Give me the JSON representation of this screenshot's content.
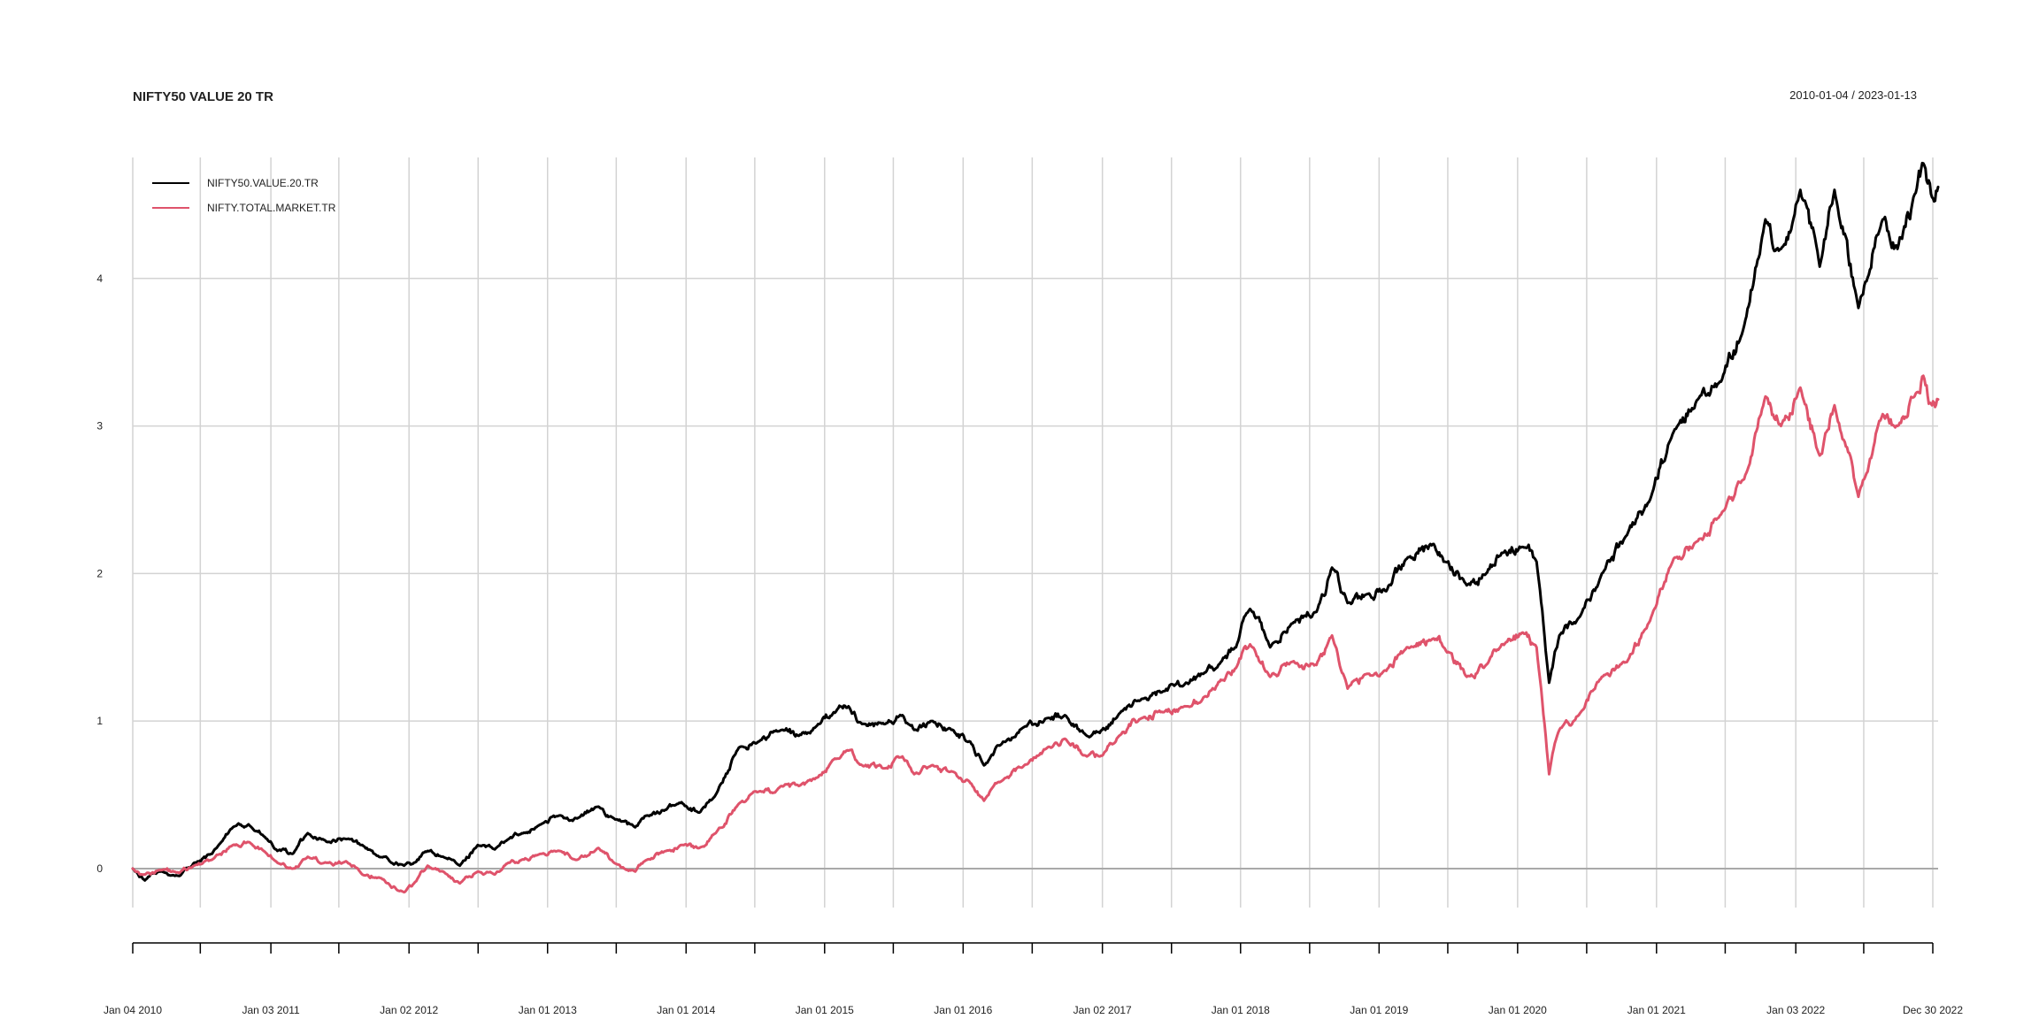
{
  "chart_data": {
    "type": "line",
    "title": "NIFTY50 VALUE 20 TR",
    "subtitle": "2010-01-04 / 2023-01-13",
    "xlabel": "",
    "ylabel": "",
    "xlim": [
      "2010-01-04",
      "2023-01-13"
    ],
    "ylim": [
      -0.18,
      4.82
    ],
    "grid": true,
    "legend_position": "top-left",
    "y_ticks": [
      0,
      1,
      2,
      3,
      4
    ],
    "x_ticks": [
      {
        "date": "2010-01-04",
        "label": "Jan 04 2010",
        "labeled": true
      },
      {
        "date": "2010-07-01",
        "label": "",
        "labeled": false
      },
      {
        "date": "2011-01-03",
        "label": "Jan 03 2011",
        "labeled": true
      },
      {
        "date": "2011-07-01",
        "label": "",
        "labeled": false
      },
      {
        "date": "2012-01-02",
        "label": "Jan 02 2012",
        "labeled": true
      },
      {
        "date": "2012-07-02",
        "label": "",
        "labeled": false
      },
      {
        "date": "2013-01-01",
        "label": "Jan 01 2013",
        "labeled": true
      },
      {
        "date": "2013-07-01",
        "label": "",
        "labeled": false
      },
      {
        "date": "2014-01-01",
        "label": "Jan 01 2014",
        "labeled": true
      },
      {
        "date": "2014-07-01",
        "label": "",
        "labeled": false
      },
      {
        "date": "2015-01-01",
        "label": "Jan 01 2015",
        "labeled": true
      },
      {
        "date": "2015-07-01",
        "label": "",
        "labeled": false
      },
      {
        "date": "2016-01-01",
        "label": "Jan 01 2016",
        "labeled": true
      },
      {
        "date": "2016-07-01",
        "label": "",
        "labeled": false
      },
      {
        "date": "2017-01-02",
        "label": "Jan 02 2017",
        "labeled": true
      },
      {
        "date": "2017-07-03",
        "label": "",
        "labeled": false
      },
      {
        "date": "2018-01-01",
        "label": "Jan 01 2018",
        "labeled": true
      },
      {
        "date": "2018-07-02",
        "label": "",
        "labeled": false
      },
      {
        "date": "2019-01-01",
        "label": "Jan 01 2019",
        "labeled": true
      },
      {
        "date": "2019-07-01",
        "label": "",
        "labeled": false
      },
      {
        "date": "2020-01-01",
        "label": "Jan 01 2020",
        "labeled": true
      },
      {
        "date": "2020-07-01",
        "label": "",
        "labeled": false
      },
      {
        "date": "2021-01-01",
        "label": "Jan 01 2021",
        "labeled": true
      },
      {
        "date": "2021-07-01",
        "label": "",
        "labeled": false
      },
      {
        "date": "2022-01-03",
        "label": "Jan 03 2022",
        "labeled": true
      },
      {
        "date": "2022-07-01",
        "label": "",
        "labeled": false
      },
      {
        "date": "2022-12-30",
        "label": "Dec 30 2022",
        "labeled": true
      }
    ],
    "series": [
      {
        "name": "NIFTY50.VALUE.20.TR",
        "color": "#000000",
        "points": [
          [
            "2010-01-04",
            0.0
          ],
          [
            "2010-02-05",
            -0.08
          ],
          [
            "2010-03-15",
            -0.02
          ],
          [
            "2010-05-07",
            -0.05
          ],
          [
            "2010-06-15",
            0.04
          ],
          [
            "2010-08-01",
            0.1
          ],
          [
            "2010-09-25",
            0.28
          ],
          [
            "2010-11-05",
            0.3
          ],
          [
            "2010-12-15",
            0.22
          ],
          [
            "2011-01-20",
            0.12
          ],
          [
            "2011-03-01",
            0.1
          ],
          [
            "2011-04-10",
            0.24
          ],
          [
            "2011-06-01",
            0.18
          ],
          [
            "2011-07-20",
            0.2
          ],
          [
            "2011-09-01",
            0.16
          ],
          [
            "2011-10-15",
            0.08
          ],
          [
            "2011-12-20",
            0.02
          ],
          [
            "2012-01-15",
            0.04
          ],
          [
            "2012-02-20",
            0.12
          ],
          [
            "2012-04-01",
            0.08
          ],
          [
            "2012-05-15",
            0.02
          ],
          [
            "2012-07-01",
            0.16
          ],
          [
            "2012-08-15",
            0.13
          ],
          [
            "2012-09-20",
            0.2
          ],
          [
            "2012-10-25",
            0.24
          ],
          [
            "2012-12-15",
            0.3
          ],
          [
            "2013-02-01",
            0.36
          ],
          [
            "2013-03-20",
            0.34
          ],
          [
            "2013-05-15",
            0.42
          ],
          [
            "2013-06-25",
            0.34
          ],
          [
            "2013-08-20",
            0.28
          ],
          [
            "2013-09-20",
            0.36
          ],
          [
            "2013-11-10",
            0.4
          ],
          [
            "2013-12-20",
            0.45
          ],
          [
            "2014-02-05",
            0.38
          ],
          [
            "2014-03-20",
            0.5
          ],
          [
            "2014-05-20",
            0.82
          ],
          [
            "2014-07-10",
            0.86
          ],
          [
            "2014-09-10",
            0.94
          ],
          [
            "2014-10-25",
            0.9
          ],
          [
            "2014-12-15",
            0.98
          ],
          [
            "2015-01-25",
            1.06
          ],
          [
            "2015-03-05",
            1.1
          ],
          [
            "2015-04-10",
            0.98
          ],
          [
            "2015-06-10",
            0.98
          ],
          [
            "2015-07-25",
            1.04
          ],
          [
            "2015-08-25",
            0.94
          ],
          [
            "2015-10-10",
            1.0
          ],
          [
            "2015-12-01",
            0.94
          ],
          [
            "2016-01-20",
            0.86
          ],
          [
            "2016-02-25",
            0.7
          ],
          [
            "2016-04-15",
            0.86
          ],
          [
            "2016-06-10",
            0.96
          ],
          [
            "2016-08-10",
            1.02
          ],
          [
            "2016-09-25",
            1.04
          ],
          [
            "2016-11-22",
            0.9
          ],
          [
            "2016-12-26",
            0.92
          ],
          [
            "2017-02-15",
            1.05
          ],
          [
            "2017-04-15",
            1.15
          ],
          [
            "2017-06-10",
            1.2
          ],
          [
            "2017-08-10",
            1.26
          ],
          [
            "2017-09-25",
            1.32
          ],
          [
            "2017-11-10",
            1.4
          ],
          [
            "2017-12-20",
            1.5
          ],
          [
            "2018-01-26",
            1.76
          ],
          [
            "2018-03-20",
            1.5
          ],
          [
            "2018-05-15",
            1.66
          ],
          [
            "2018-07-20",
            1.74
          ],
          [
            "2018-08-30",
            2.04
          ],
          [
            "2018-10-10",
            1.8
          ],
          [
            "2018-11-30",
            1.86
          ],
          [
            "2019-01-20",
            1.88
          ],
          [
            "2019-03-15",
            2.1
          ],
          [
            "2019-05-25",
            2.2
          ],
          [
            "2019-06-20",
            2.08
          ],
          [
            "2019-08-20",
            1.92
          ],
          [
            "2019-10-10",
            2.0
          ],
          [
            "2019-11-20",
            2.14
          ],
          [
            "2020-01-15",
            2.18
          ],
          [
            "2020-02-20",
            2.08
          ],
          [
            "2020-03-24",
            1.26
          ],
          [
            "2020-04-20",
            1.58
          ],
          [
            "2020-06-10",
            1.7
          ],
          [
            "2020-08-10",
            2.0
          ],
          [
            "2020-10-15",
            2.26
          ],
          [
            "2020-12-15",
            2.5
          ],
          [
            "2021-02-15",
            2.96
          ],
          [
            "2021-04-20",
            3.18
          ],
          [
            "2021-06-20",
            3.3
          ],
          [
            "2021-08-20",
            3.68
          ],
          [
            "2021-10-15",
            4.4
          ],
          [
            "2021-11-25",
            4.2
          ],
          [
            "2022-01-15",
            4.6
          ],
          [
            "2022-03-07",
            4.08
          ],
          [
            "2022-04-15",
            4.6
          ],
          [
            "2022-06-17",
            3.8
          ],
          [
            "2022-08-20",
            4.4
          ],
          [
            "2022-09-28",
            4.2
          ],
          [
            "2022-11-15",
            4.58
          ],
          [
            "2022-12-05",
            4.78
          ],
          [
            "2022-12-28",
            4.55
          ],
          [
            "2023-01-13",
            4.62
          ]
        ]
      },
      {
        "name": "NIFTY.TOTAL.MARKET.TR",
        "color": "#DF536B",
        "points": [
          [
            "2010-01-04",
            0.0
          ],
          [
            "2010-02-05",
            -0.04
          ],
          [
            "2010-03-15",
            -0.01
          ],
          [
            "2010-05-07",
            -0.03
          ],
          [
            "2010-06-15",
            0.02
          ],
          [
            "2010-08-01",
            0.06
          ],
          [
            "2010-09-25",
            0.16
          ],
          [
            "2010-11-05",
            0.18
          ],
          [
            "2010-12-15",
            0.12
          ],
          [
            "2011-01-20",
            0.04
          ],
          [
            "2011-03-01",
            0.0
          ],
          [
            "2011-04-10",
            0.08
          ],
          [
            "2011-06-01",
            0.04
          ],
          [
            "2011-07-20",
            0.05
          ],
          [
            "2011-09-01",
            -0.04
          ],
          [
            "2011-10-15",
            -0.06
          ],
          [
            "2011-12-20",
            -0.16
          ],
          [
            "2012-01-15",
            -0.1
          ],
          [
            "2012-02-20",
            0.02
          ],
          [
            "2012-04-01",
            -0.02
          ],
          [
            "2012-05-15",
            -0.1
          ],
          [
            "2012-07-01",
            -0.02
          ],
          [
            "2012-08-15",
            -0.04
          ],
          [
            "2012-09-20",
            0.04
          ],
          [
            "2012-10-25",
            0.06
          ],
          [
            "2012-12-15",
            0.1
          ],
          [
            "2013-02-01",
            0.12
          ],
          [
            "2013-03-20",
            0.06
          ],
          [
            "2013-05-15",
            0.14
          ],
          [
            "2013-06-25",
            0.04
          ],
          [
            "2013-08-20",
            -0.02
          ],
          [
            "2013-09-20",
            0.06
          ],
          [
            "2013-11-10",
            0.12
          ],
          [
            "2013-12-20",
            0.16
          ],
          [
            "2014-02-05",
            0.14
          ],
          [
            "2014-03-20",
            0.24
          ],
          [
            "2014-05-20",
            0.44
          ],
          [
            "2014-07-10",
            0.52
          ],
          [
            "2014-09-10",
            0.56
          ],
          [
            "2014-10-25",
            0.56
          ],
          [
            "2014-12-15",
            0.62
          ],
          [
            "2015-01-25",
            0.74
          ],
          [
            "2015-03-05",
            0.8
          ],
          [
            "2015-04-10",
            0.7
          ],
          [
            "2015-06-10",
            0.68
          ],
          [
            "2015-07-25",
            0.76
          ],
          [
            "2015-08-25",
            0.64
          ],
          [
            "2015-10-10",
            0.7
          ],
          [
            "2015-12-01",
            0.66
          ],
          [
            "2016-01-20",
            0.58
          ],
          [
            "2016-02-25",
            0.46
          ],
          [
            "2016-04-15",
            0.6
          ],
          [
            "2016-06-10",
            0.7
          ],
          [
            "2016-08-10",
            0.82
          ],
          [
            "2016-09-25",
            0.88
          ],
          [
            "2016-11-22",
            0.76
          ],
          [
            "2016-12-26",
            0.76
          ],
          [
            "2017-02-15",
            0.9
          ],
          [
            "2017-04-15",
            1.02
          ],
          [
            "2017-06-10",
            1.06
          ],
          [
            "2017-08-10",
            1.1
          ],
          [
            "2017-09-25",
            1.16
          ],
          [
            "2017-11-10",
            1.28
          ],
          [
            "2017-12-20",
            1.36
          ],
          [
            "2018-01-26",
            1.52
          ],
          [
            "2018-03-20",
            1.3
          ],
          [
            "2018-05-15",
            1.4
          ],
          [
            "2018-07-20",
            1.38
          ],
          [
            "2018-08-30",
            1.58
          ],
          [
            "2018-10-10",
            1.22
          ],
          [
            "2018-11-30",
            1.32
          ],
          [
            "2019-01-20",
            1.34
          ],
          [
            "2019-03-15",
            1.5
          ],
          [
            "2019-05-25",
            1.56
          ],
          [
            "2019-06-20",
            1.5
          ],
          [
            "2019-08-20",
            1.3
          ],
          [
            "2019-10-10",
            1.38
          ],
          [
            "2019-11-20",
            1.52
          ],
          [
            "2020-01-15",
            1.6
          ],
          [
            "2020-02-20",
            1.5
          ],
          [
            "2020-03-24",
            0.64
          ],
          [
            "2020-04-20",
            0.94
          ],
          [
            "2020-06-10",
            1.04
          ],
          [
            "2020-08-10",
            1.3
          ],
          [
            "2020-10-15",
            1.4
          ],
          [
            "2020-12-15",
            1.68
          ],
          [
            "2021-02-15",
            2.1
          ],
          [
            "2021-04-20",
            2.22
          ],
          [
            "2021-06-20",
            2.4
          ],
          [
            "2021-08-20",
            2.64
          ],
          [
            "2021-10-15",
            3.2
          ],
          [
            "2021-11-25",
            3.0
          ],
          [
            "2022-01-15",
            3.26
          ],
          [
            "2022-03-07",
            2.8
          ],
          [
            "2022-04-15",
            3.14
          ],
          [
            "2022-06-17",
            2.52
          ],
          [
            "2022-08-20",
            3.08
          ],
          [
            "2022-09-28",
            3.0
          ],
          [
            "2022-11-15",
            3.22
          ],
          [
            "2022-12-05",
            3.34
          ],
          [
            "2022-12-28",
            3.14
          ],
          [
            "2023-01-13",
            3.18
          ]
        ]
      }
    ]
  }
}
